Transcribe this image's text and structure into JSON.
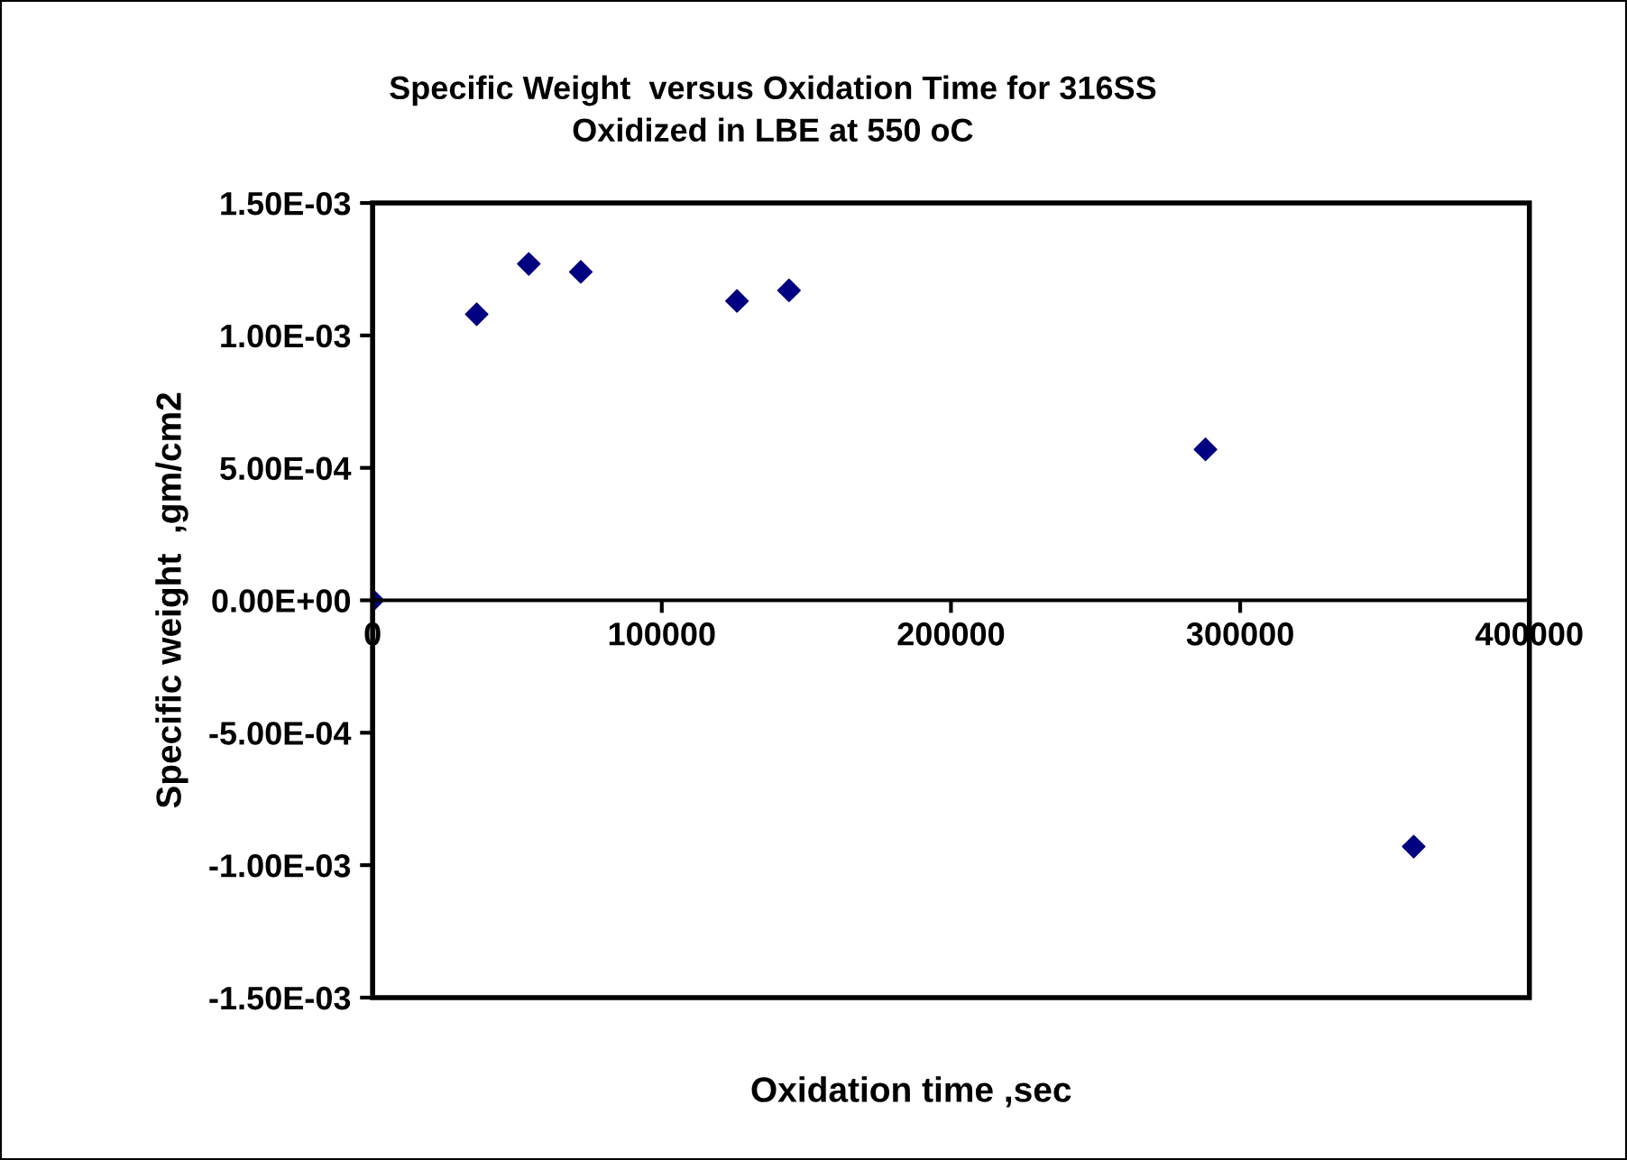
{
  "chart_data": {
    "type": "scatter",
    "title": "Specific Weight  versus Oxidation Time for 316SS\nOxidized in LBE at 550 oC",
    "xlabel": "Oxidation time ,sec",
    "ylabel": "Specific weight  ,gm/cm2",
    "x": [
      0,
      36000,
      54000,
      72000,
      126000,
      144000,
      288000,
      360000
    ],
    "series": [
      {
        "color": "#000080",
        "values": [
          0,
          0.00108,
          0.00127,
          0.00124,
          0.00113,
          0.00117,
          0.00057,
          -0.00093
        ]
      }
    ],
    "xlim": [
      0,
      400000
    ],
    "xticks": [
      0,
      100000,
      200000,
      300000,
      400000
    ],
    "ylim": [
      -0.0015,
      0.0015
    ],
    "yticks": [
      {
        "value": -0.0015,
        "label": "-1.50E-03"
      },
      {
        "value": -0.001,
        "label": "-1.00E-03"
      },
      {
        "value": -0.0005,
        "label": "-5.00E-04"
      },
      {
        "value": 0,
        "label": "0.00E+00"
      },
      {
        "value": 0.0005,
        "label": "5.00E-04"
      },
      {
        "value": 0.001,
        "label": "1.00E-03"
      },
      {
        "value": 0.0015,
        "label": "1.50E-03"
      }
    ],
    "marker": "diamond",
    "grid": false,
    "legend": false
  }
}
